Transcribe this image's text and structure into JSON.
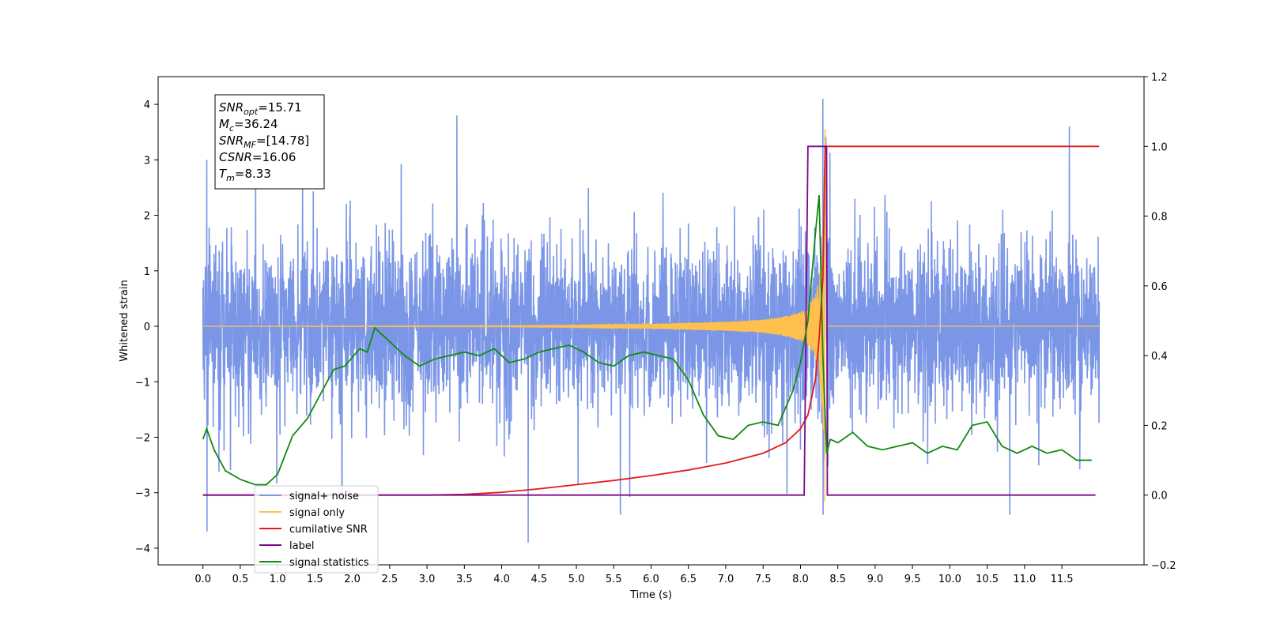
{
  "chart_data": {
    "type": "line",
    "title": "",
    "xlabel": "Time (s)",
    "ylabel": "Whitened strain",
    "xlim": [
      -0.6,
      12.6
    ],
    "ylim": [
      -4.3,
      4.5
    ],
    "y2lim": [
      -0.2,
      1.2
    ],
    "x_ticks": [
      0.0,
      0.5,
      1.0,
      1.5,
      2.0,
      2.5,
      3.0,
      3.5,
      4.0,
      4.5,
      5.0,
      5.5,
      6.0,
      6.5,
      7.0,
      7.5,
      8.0,
      8.5,
      9.0,
      9.5,
      10.0,
      10.5,
      11.0,
      11.5
    ],
    "x_tick_labels": [
      "0.0",
      "0.5",
      "1.0",
      "1.5",
      "2.0",
      "2.5",
      "3.0",
      "3.5",
      "4.0",
      "4.5",
      "5.0",
      "5.5",
      "6.0",
      "6.5",
      "7.0",
      "7.5",
      "8.0",
      "8.5",
      "9.0",
      "9.5",
      "10.0",
      "10.5",
      "11.0",
      "11.5"
    ],
    "y_ticks": [
      -4,
      -3,
      -2,
      -1,
      0,
      1,
      2,
      3,
      4
    ],
    "y_tick_labels": [
      "−4",
      "−3",
      "−2",
      "−1",
      "0",
      "1",
      "2",
      "3",
      "4"
    ],
    "y2_ticks": [
      -0.2,
      0.0,
      0.2,
      0.4,
      0.6,
      0.8,
      1.0,
      1.2
    ],
    "y2_tick_labels": [
      "−0.2",
      "0.0",
      "0.2",
      "0.4",
      "0.6",
      "0.8",
      "1.0",
      "1.2"
    ],
    "grid": false,
    "legend_position": "lower-left",
    "annotation_lines": [
      {
        "symbol": "SNR",
        "sub": "opt",
        "value": "=15.71"
      },
      {
        "symbol": "M",
        "sub": "c",
        "value": "=36.24"
      },
      {
        "symbol": "SNR",
        "sub": "MF",
        "value": "=[14.78]"
      },
      {
        "symbol": "CSNR",
        "sub": "",
        "value": "=16.06"
      },
      {
        "symbol": "T",
        "sub": "m",
        "value": "=8.33"
      }
    ],
    "series": [
      {
        "name": "signal+ noise",
        "color": "#7b96e6",
        "axis": "left",
        "kind": "noise",
        "x_range": [
          0.0,
          12.0
        ],
        "typical_amplitude": 1.0,
        "positive_extremes": [
          [
            0.05,
            3.0
          ],
          [
            3.4,
            3.8
          ],
          [
            11.6,
            3.6
          ],
          [
            8.3,
            4.1
          ]
        ],
        "negative_extremes": [
          [
            0.05,
            -3.7
          ],
          [
            4.35,
            -3.9
          ],
          [
            10.8,
            -3.4
          ],
          [
            8.3,
            -3.4
          ]
        ]
      },
      {
        "name": "signal only",
        "color": "#ffc04d",
        "axis": "left",
        "kind": "chirp",
        "x": [
          0.0,
          2.0,
          4.0,
          5.0,
          6.0,
          7.0,
          7.5,
          7.8,
          8.0,
          8.1,
          8.2,
          8.25,
          8.3,
          8.33,
          8.36,
          12.0
        ],
        "envelope": [
          0.0,
          0.005,
          0.01,
          0.02,
          0.04,
          0.08,
          0.12,
          0.18,
          0.26,
          0.34,
          0.55,
          0.9,
          1.6,
          3.6,
          0.0,
          0.0
        ]
      },
      {
        "name": "cumilative SNR",
        "color": "#e31a1c",
        "axis": "right",
        "x": [
          0.0,
          3.0,
          3.5,
          4.0,
          4.5,
          5.0,
          5.5,
          6.0,
          6.5,
          7.0,
          7.5,
          7.8,
          8.0,
          8.1,
          8.2,
          8.25,
          8.3,
          8.33,
          8.35,
          12.0
        ],
        "y": [
          0.0,
          0.0,
          0.002,
          0.008,
          0.018,
          0.03,
          0.042,
          0.056,
          0.072,
          0.092,
          0.12,
          0.15,
          0.19,
          0.23,
          0.33,
          0.45,
          0.62,
          1.0,
          1.0,
          1.0
        ]
      },
      {
        "name": "label",
        "color": "#7a0a8a",
        "axis": "right",
        "x": [
          0.0,
          8.05,
          8.1,
          8.35,
          8.36,
          11.95
        ],
        "y": [
          0.0,
          0.0,
          1.0,
          1.0,
          0.0,
          0.0
        ]
      },
      {
        "name": "signal statistics",
        "color": "#128a12",
        "axis": "right",
        "x": [
          0.0,
          0.05,
          0.15,
          0.3,
          0.5,
          0.7,
          0.85,
          1.0,
          1.2,
          1.4,
          1.6,
          1.75,
          1.9,
          2.1,
          2.2,
          2.3,
          2.4,
          2.5,
          2.7,
          2.9,
          3.1,
          3.3,
          3.5,
          3.7,
          3.9,
          4.1,
          4.3,
          4.5,
          4.7,
          4.9,
          5.1,
          5.3,
          5.5,
          5.7,
          5.9,
          6.1,
          6.3,
          6.5,
          6.7,
          6.9,
          7.1,
          7.3,
          7.5,
          7.7,
          7.9,
          8.0,
          8.1,
          8.2,
          8.25,
          8.3,
          8.35,
          8.4,
          8.5,
          8.7,
          8.9,
          9.1,
          9.3,
          9.5,
          9.7,
          9.9,
          10.1,
          10.3,
          10.5,
          10.7,
          10.9,
          11.1,
          11.3,
          11.5,
          11.7,
          11.9
        ],
        "y": [
          0.16,
          0.19,
          0.13,
          0.07,
          0.045,
          0.03,
          0.03,
          0.06,
          0.17,
          0.22,
          0.3,
          0.36,
          0.37,
          0.42,
          0.41,
          0.48,
          0.46,
          0.44,
          0.4,
          0.37,
          0.39,
          0.4,
          0.41,
          0.4,
          0.42,
          0.38,
          0.39,
          0.41,
          0.42,
          0.43,
          0.41,
          0.38,
          0.37,
          0.4,
          0.41,
          0.4,
          0.39,
          0.33,
          0.23,
          0.17,
          0.16,
          0.2,
          0.21,
          0.2,
          0.3,
          0.38,
          0.5,
          0.75,
          0.86,
          0.4,
          0.12,
          0.16,
          0.15,
          0.18,
          0.14,
          0.13,
          0.14,
          0.15,
          0.12,
          0.14,
          0.13,
          0.2,
          0.21,
          0.14,
          0.12,
          0.14,
          0.12,
          0.13,
          0.1,
          0.1
        ]
      }
    ]
  }
}
